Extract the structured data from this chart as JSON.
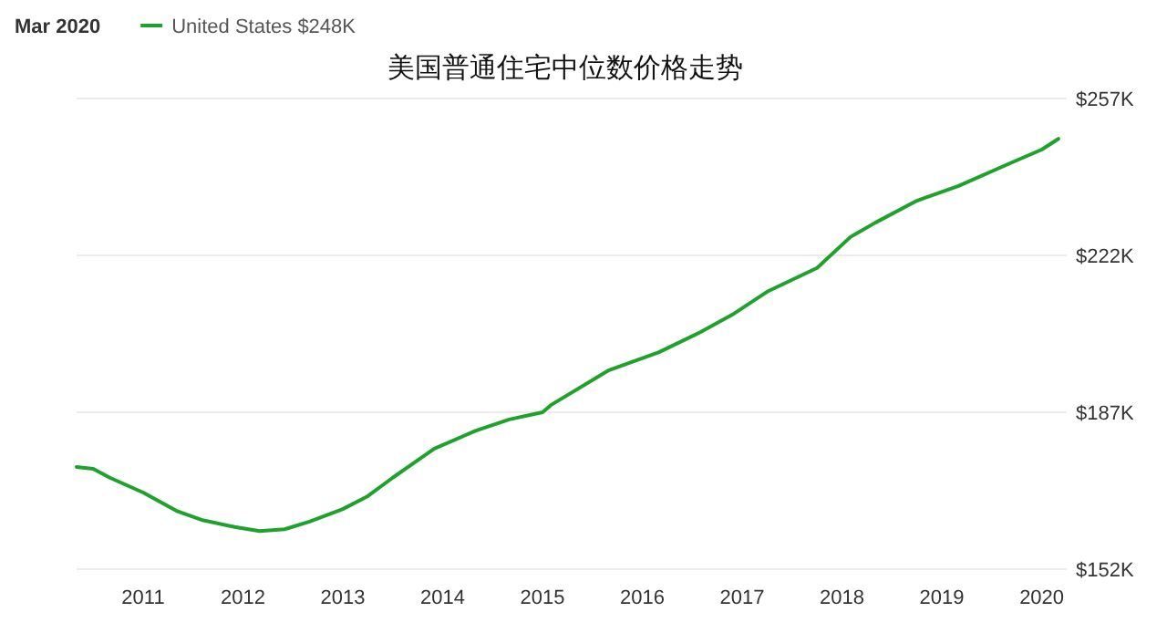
{
  "chart_data": {
    "type": "line",
    "title": "美国普通住宅中位数价格走势",
    "annotations": [
      "Mar 2020"
    ],
    "legend": "top left",
    "grid": "y",
    "x": [
      "2010-05",
      "2010-07",
      "2010-09",
      "2011-01",
      "2011-05",
      "2011-08",
      "2011-12",
      "2012-03",
      "2012-06",
      "2012-09",
      "2013-01",
      "2013-04",
      "2013-07",
      "2013-12",
      "2014-05",
      "2014-09",
      "2015-01",
      "2015-02",
      "2015-09",
      "2016-03",
      "2016-08",
      "2016-12",
      "2017-04",
      "2017-10",
      "2018-02",
      "2018-05",
      "2018-10",
      "2019-03",
      "2019-09",
      "2020-01",
      "2020-03"
    ],
    "series": [
      {
        "name": "United States $248K",
        "color": "#1fa22b",
        "values": [
          174.8,
          174.4,
          172.4,
          169.1,
          165.0,
          163.0,
          161.4,
          160.5,
          160.9,
          162.6,
          165.4,
          168.3,
          172.4,
          178.9,
          182.9,
          185.4,
          187.0,
          188.6,
          196.4,
          200.4,
          204.9,
          209.0,
          213.9,
          219.2,
          226.1,
          229.3,
          234.2,
          237.5,
          242.4,
          245.6,
          248
        ]
      }
    ],
    "xlim": [
      "2010-05",
      "2020-04"
    ],
    "xticks": [
      "2011",
      "2012",
      "2013",
      "2014",
      "2015",
      "2016",
      "2017",
      "2018",
      "2019",
      "2020"
    ],
    "ylim": [
      152,
      257
    ],
    "yticks": [
      {
        "value": 152,
        "label": "$152K"
      },
      {
        "value": 187,
        "label": "$187K"
      },
      {
        "value": 222,
        "label": "$222K"
      },
      {
        "value": 257,
        "label": "$257K"
      }
    ]
  }
}
